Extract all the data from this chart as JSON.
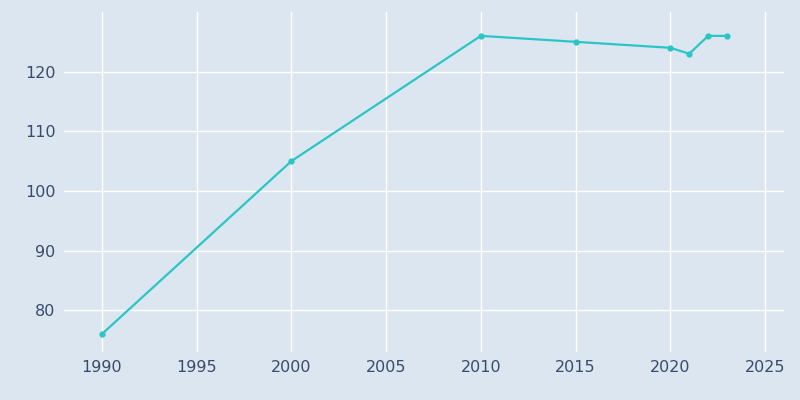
{
  "years": [
    1990,
    2000,
    2010,
    2015,
    2020,
    2021,
    2022,
    2023
  ],
  "population": [
    76,
    105,
    126,
    125,
    124,
    123,
    126,
    126
  ],
  "line_color": "#2bc5c5",
  "marker": "o",
  "marker_size": 3.5,
  "linewidth": 1.6,
  "bg_color": "#dce6f0",
  "fig_bg_color": "#dce6f0",
  "xlim": [
    1988,
    2026
  ],
  "ylim": [
    73,
    130
  ],
  "xticks": [
    1990,
    1995,
    2000,
    2005,
    2010,
    2015,
    2020,
    2025
  ],
  "yticks": [
    80,
    90,
    100,
    110,
    120
  ],
  "grid_color": "#ffffff",
  "tick_color": "#3a4a6b",
  "tick_fontsize": 11.5
}
